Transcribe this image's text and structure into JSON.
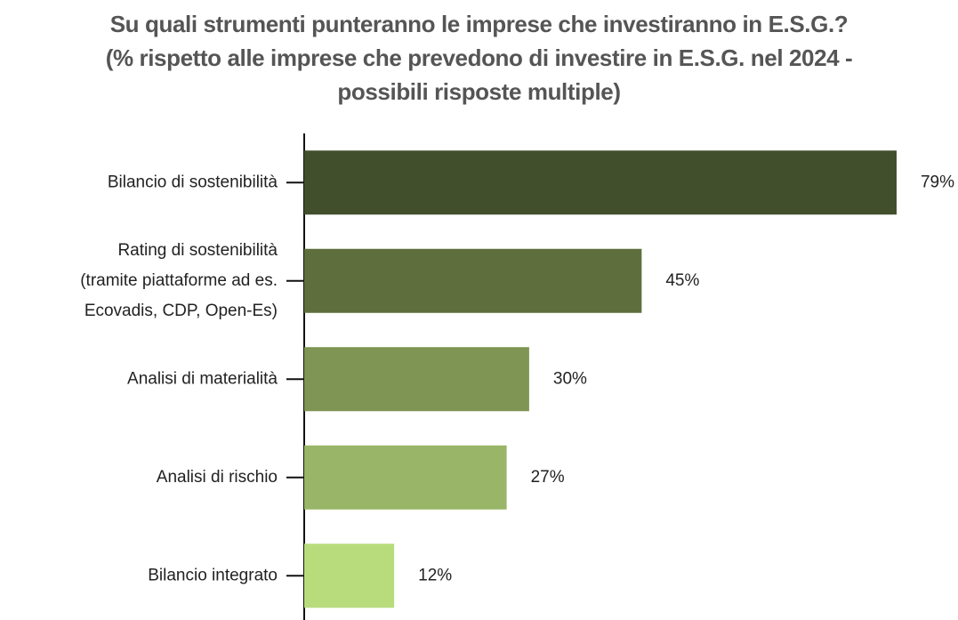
{
  "chart_data": {
    "type": "hbar",
    "title": "Su quali strumenti punteranno le imprese che investiranno in E.S.G.?",
    "subtitle": "(% rispetto alle imprese che prevedono di investire in E.S.G. nel 2024 -\npossibili risposte multiple)",
    "categories": [
      "Bilancio di sostenibilità",
      "Rating di sostenibilità\n(tramite piattaforme ad es.\nEcovadis, CDP, Open-Es)",
      "Analisi di materialità",
      "Analisi di rischio",
      "Bilancio integrato"
    ],
    "values": [
      79,
      45,
      30,
      27,
      12
    ],
    "value_labels": [
      "79%",
      "45%",
      "30%",
      "27%",
      "12%"
    ],
    "colors": [
      "#414f2c",
      "#5e6f3d",
      "#7e9553",
      "#99b567",
      "#b8dc7c"
    ]
  }
}
